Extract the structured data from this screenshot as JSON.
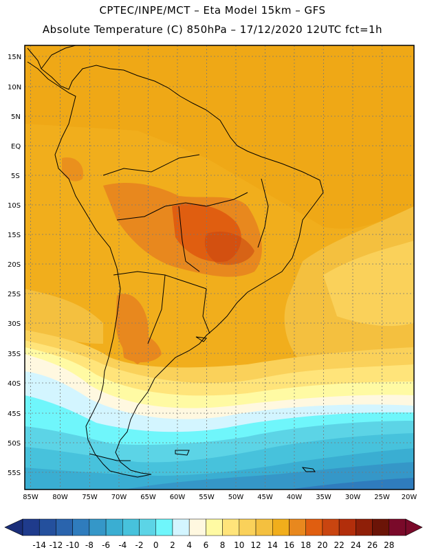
{
  "header": {
    "title_line1": "CPTEC/INPE/MCT –  Eta Model 15km – GFS",
    "title_line2": "Absolute Temperature (C) 850hPa – 17/12/2020 12UTC fct=1h"
  },
  "map": {
    "region": "South America",
    "lat_labels": [
      "15N",
      "10N",
      "5N",
      "EQ",
      "5S",
      "10S",
      "15S",
      "20S",
      "25S",
      "30S",
      "35S",
      "40S",
      "45S",
      "50S",
      "55S"
    ],
    "lon_labels": [
      "85W",
      "80W",
      "75W",
      "70W",
      "65W",
      "60W",
      "55W",
      "50W",
      "45W",
      "40W",
      "35W",
      "30W",
      "25W",
      "20W"
    ]
  },
  "colorbar": {
    "labels": [
      "-14",
      "-12",
      "-10",
      "-8",
      "-6",
      "-4",
      "-2",
      "0",
      "2",
      "4",
      "6",
      "8",
      "10",
      "12",
      "14",
      "16",
      "18",
      "20",
      "22",
      "24",
      "26",
      "28"
    ],
    "colors": [
      "#1f3b8c",
      "#24509d",
      "#2a64ad",
      "#2f7cbd",
      "#3597c8",
      "#3aaed2",
      "#47c2dc",
      "#5cd4e6",
      "#6ff6fb",
      "#d3f5ff",
      "#fff8e0",
      "#fffaa3",
      "#ffe47a",
      "#fad15a",
      "#f4c03f",
      "#f1ae1c",
      "#e8881e",
      "#e05e10",
      "#c94510",
      "#b22e0b",
      "#8f1f08",
      "#6b1407",
      "#7a0a2a"
    ],
    "under_color": "#1a2e7a",
    "over_color": "#7a0a2a"
  }
}
